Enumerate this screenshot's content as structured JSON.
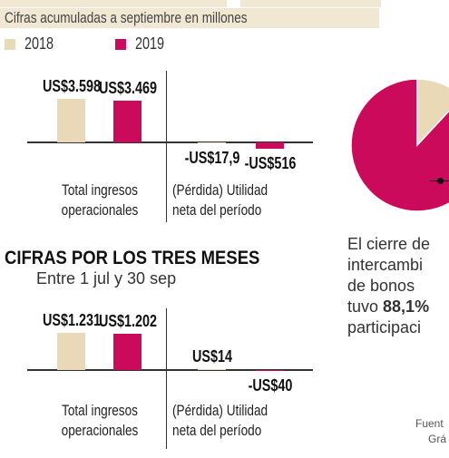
{
  "header": {
    "subtitle": "Cifras acumuladas a septiembre en millones"
  },
  "chart_data": [
    {
      "type": "bar",
      "categories": [
        [
          "Total ingresos",
          "operacionales"
        ],
        [
          "(Pérdida) Utilidad",
          "neta del período"
        ]
      ],
      "series": [
        {
          "name": "2018",
          "color": "#e9d9b6",
          "values": [
            3598,
            -17.9
          ],
          "value_labels": [
            "US$3.598",
            "-US$17,9"
          ]
        },
        {
          "name": "2019",
          "color": "#cc0a5c",
          "values": [
            3469,
            -516
          ],
          "value_labels": [
            "US$3.469",
            "-US$516"
          ]
        }
      ]
    },
    {
      "type": "bar",
      "title": "CIFRAS POR LOS TRES MESES",
      "subtitle": "Entre 1 jul  y 30 sep",
      "categories": [
        [
          "Total ingresos",
          "operacionales"
        ],
        [
          "(Pérdida) Utilidad",
          "neta del período"
        ]
      ],
      "series": [
        {
          "color": "#e9d9b6",
          "values": [
            1231,
            14
          ],
          "value_labels": [
            "US$1.231",
            "US$14"
          ]
        },
        {
          "color": "#cc0a5c",
          "values": [
            1202,
            -40
          ],
          "value_labels": [
            "US$1.202",
            "-US$40"
          ]
        }
      ]
    },
    {
      "type": "pie",
      "values": [
        88.1,
        11.9
      ],
      "colors": [
        "#cc0a5c",
        "#e9d9b6"
      ]
    }
  ],
  "text": {
    "paragraph": [
      "El cierre de",
      "intercambi",
      "de bonos",
      "tuvo ",
      "88,1%",
      "participaci"
    ],
    "source": [
      "Fuent",
      "Grá"
    ]
  }
}
